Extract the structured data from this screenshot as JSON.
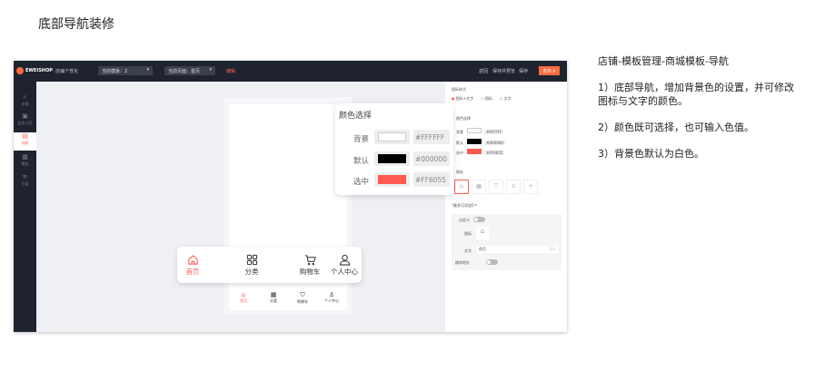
{
  "page_title": "底部导航装修",
  "app": {
    "logo": "EWEISHOP",
    "subtitle": "· 店铺个性化",
    "template_select": "当前模板：2",
    "page_select": "当前页面：首页",
    "edit_link": "编辑",
    "actions": {
      "back": "返回",
      "save_preview": "保存并预览",
      "save": "保存",
      "publish": "发布"
    },
    "sidebar": [
      {
        "label": "店铺",
        "icon": "search-icon"
      },
      {
        "label": "自定义页",
        "icon": "page-icon"
      },
      {
        "label": "导航",
        "icon": "nav-icon",
        "active": true
      },
      {
        "label": "模板",
        "icon": "template-icon"
      },
      {
        "label": "分类",
        "icon": "wifi-icon"
      }
    ],
    "phone_tabs": [
      "首页",
      "分类",
      "购物车",
      "个人中心"
    ],
    "right_panel": {
      "icon_style_label": "图标样式",
      "style_options": [
        "图标+文字",
        "图标",
        "文字"
      ],
      "color_label": "颜色选择",
      "colors": [
        {
          "label": "背景",
          "hex": "#FFFFFF"
        },
        {
          "label": "默认",
          "hex": "#000000"
        },
        {
          "label": "选中",
          "hex": "#FF6055"
        }
      ],
      "icons_label": "图标",
      "max_hint": "*最多可添加5个",
      "custom_label": "自定义",
      "icon_field": "图标",
      "text_field": "文字",
      "text_value": "首页",
      "text_count": "2/4",
      "link_label": "跳转地址"
    }
  },
  "color_popup": {
    "title": "颜色选择",
    "rows": [
      {
        "label": "背景",
        "hex": "#FFFFFF"
      },
      {
        "label": "默认",
        "hex": "#000000"
      },
      {
        "label": "选中",
        "hex": "#FF6055"
      }
    ]
  },
  "big_nav": {
    "items": [
      "首页",
      "分类",
      "购物车",
      "个人中心"
    ],
    "active_color": "#FF6055"
  },
  "notes": {
    "heading": "店铺-模板管理-商城模板-导航",
    "items": [
      "1）底部导航，增加背景色的设置，并可修改图标与文字的颜色。",
      "2）颜色既可选择，也可输入色值。",
      "3）背景色默认为白色。"
    ]
  }
}
